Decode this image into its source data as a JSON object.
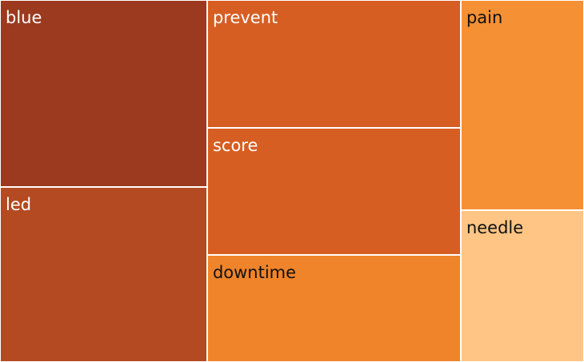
{
  "chart_data": {
    "type": "treemap",
    "items": [
      {
        "label": "blue",
        "value": 60,
        "color": "#9C3A20",
        "text_color": "#ffffff"
      },
      {
        "label": "led",
        "value": 56,
        "color": "#B34A22",
        "text_color": "#ffffff"
      },
      {
        "label": "prevent",
        "value": 50,
        "color": "#D75E23",
        "text_color": "#ffffff"
      },
      {
        "label": "score",
        "value": 50,
        "color": "#D75E23",
        "text_color": "#ffffff"
      },
      {
        "label": "downtime",
        "value": 42,
        "color": "#F0842A",
        "text_color": "#111111"
      },
      {
        "label": "pain",
        "value": 40,
        "color": "#F59035",
        "text_color": "#111111"
      },
      {
        "label": "needle",
        "value": 29,
        "color": "#FEC584",
        "text_color": "#111111"
      }
    ]
  }
}
